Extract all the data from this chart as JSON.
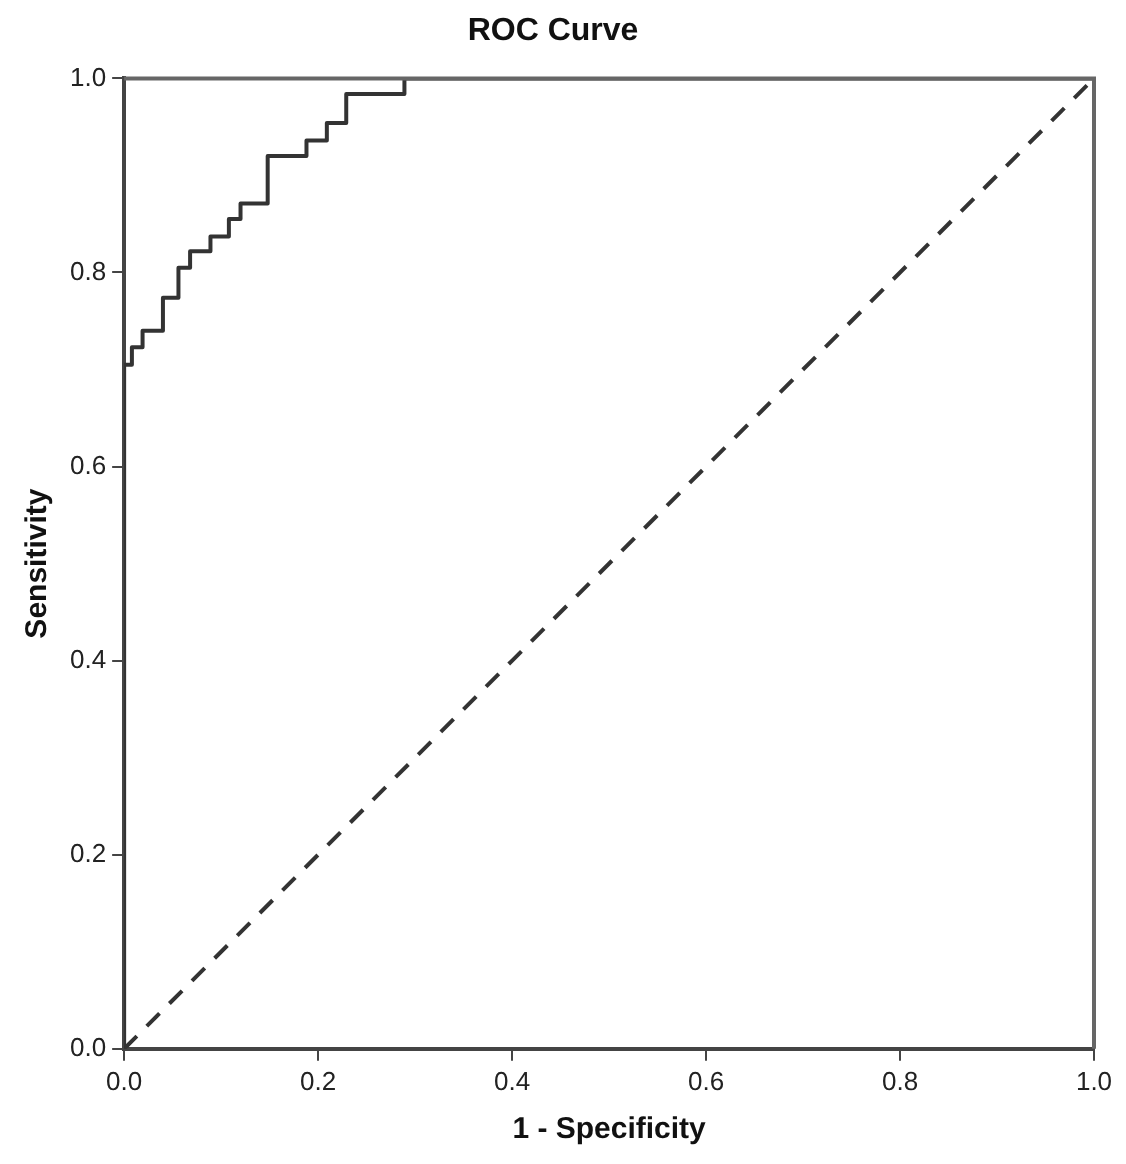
{
  "chart_data": {
    "type": "step",
    "title": "ROC Curve",
    "xlabel": "1 - Specificity",
    "ylabel": "Sensitivity",
    "xlim": [
      0,
      1
    ],
    "ylim": [
      0,
      1
    ],
    "xticks": [
      {
        "value": 0,
        "label": "0.0"
      },
      {
        "value": 0.2,
        "label": "0.2"
      },
      {
        "value": 0.4,
        "label": "0.4"
      },
      {
        "value": 0.6,
        "label": "0.6"
      },
      {
        "value": 0.8,
        "label": "0.8"
      },
      {
        "value": 1,
        "label": "1.0"
      }
    ],
    "yticks": [
      {
        "value": 0,
        "label": "0.0"
      },
      {
        "value": 0.2,
        "label": "0.2"
      },
      {
        "value": 0.4,
        "label": "0.4"
      },
      {
        "value": 0.6,
        "label": "0.6"
      },
      {
        "value": 0.8,
        "label": "0.8"
      },
      {
        "value": 1,
        "label": "1.0"
      }
    ],
    "grid": false,
    "legend": false,
    "marker": "none",
    "series": [
      {
        "color": "#333333",
        "line_style": "solid",
        "x": [
          0,
          0,
          0.008,
          0.019,
          0.04,
          0.056,
          0.068,
          0.089,
          0.108,
          0.12,
          0.148,
          0.188,
          0.209,
          0.229,
          0.289,
          0.569,
          1
        ],
        "values": [
          0,
          0.544,
          0.705,
          0.723,
          0.74,
          0.774,
          0.805,
          0.822,
          0.837,
          0.855,
          0.871,
          0.92,
          0.936,
          0.954,
          0.984,
          1,
          1
        ]
      },
      {
        "type": "line",
        "color": "#333333",
        "line_style": "dashed",
        "x": [
          0,
          1
        ],
        "values": [
          0,
          1
        ]
      }
    ]
  }
}
